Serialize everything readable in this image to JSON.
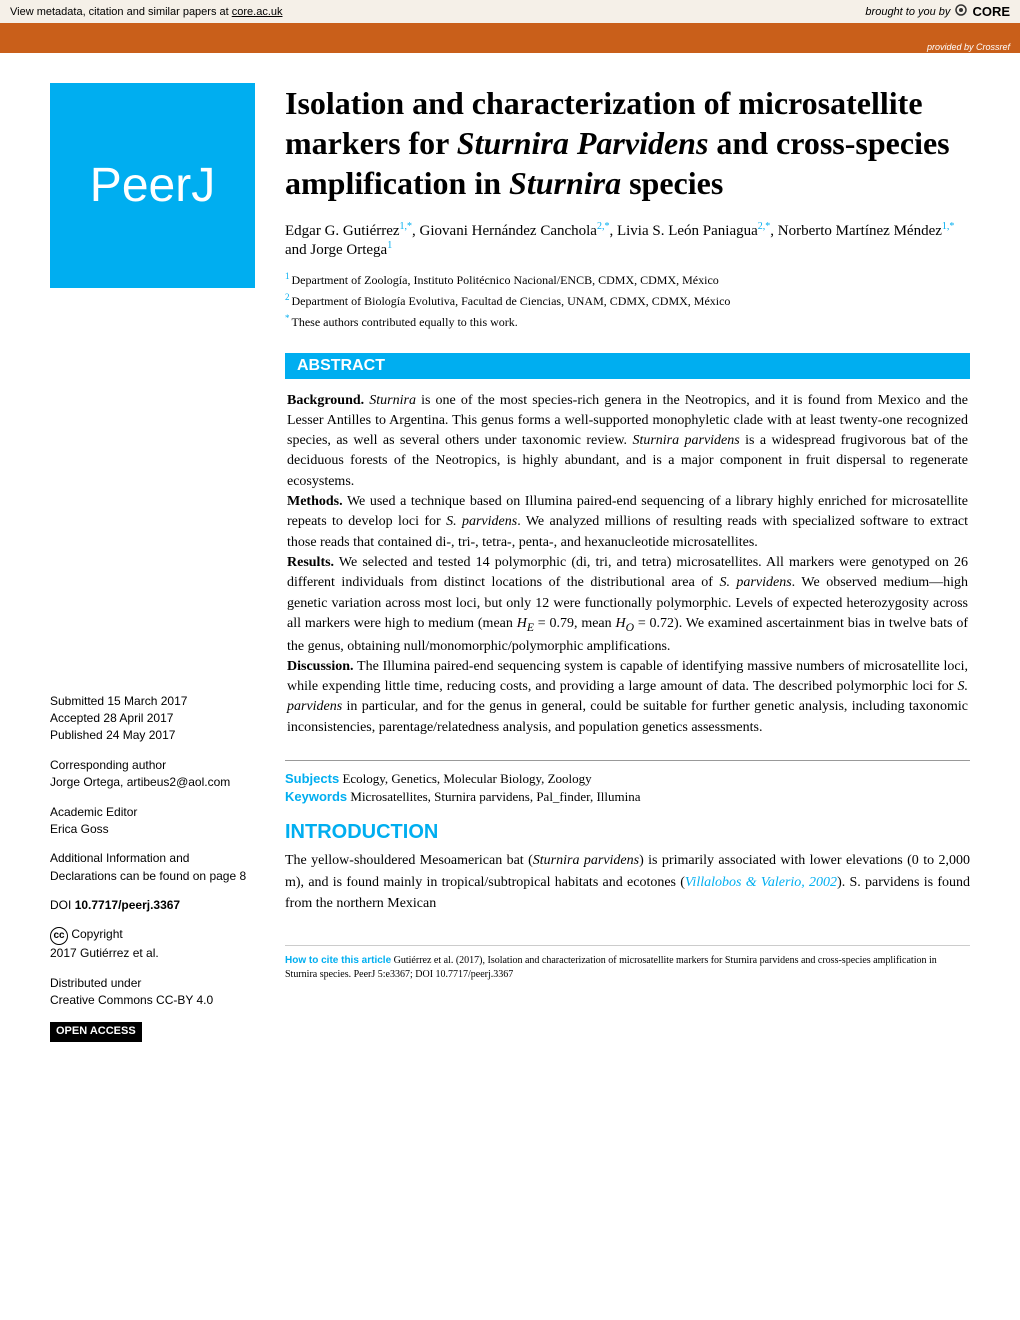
{
  "banner": {
    "left_text": "View metadata, citation and similar papers at ",
    "left_link": "core.ac.uk",
    "brought_by": "brought to you by",
    "core": "CORE",
    "provided_by": "provided by Crossref"
  },
  "logo": {
    "text": "PeerJ"
  },
  "title": {
    "parts": [
      {
        "t": "Isolation and characterization of microsatellite markers for ",
        "i": false
      },
      {
        "t": "Sturnira Parvidens",
        "i": true
      },
      {
        "t": " and cross-species amplification in ",
        "i": false
      },
      {
        "t": "Sturnira",
        "i": true
      },
      {
        "t": " species",
        "i": false
      }
    ]
  },
  "authors": [
    {
      "name": "Edgar G. Gutiérrez",
      "sup": "1,*"
    },
    {
      "name": "Giovani Hernández Canchola",
      "sup": "2,*"
    },
    {
      "name": "Livia S. León Paniagua",
      "sup": "2,*"
    },
    {
      "name": "Norberto Martínez Méndez",
      "sup": "1,*"
    },
    {
      "name": "Jorge Ortega",
      "sup": "1"
    }
  ],
  "affiliations": [
    {
      "sup": "1",
      "text": "Department of Zoología, Instituto Politécnico Nacional/ENCB, CDMX, CDMX, México"
    },
    {
      "sup": "2",
      "text": "Department of Biología Evolutiva, Facultad de Ciencias, UNAM, CDMX, CDMX, México"
    }
  ],
  "contrib": {
    "sup": "*",
    "text": "These authors contributed equally to this work."
  },
  "sidebar": {
    "submitted": {
      "label": "Submitted",
      "value": "15 March 2017"
    },
    "accepted": {
      "label": "Accepted",
      "value": "28 April 2017"
    },
    "published": {
      "label": "Published",
      "value": "24 May 2017"
    },
    "corresponding": {
      "label": "Corresponding author",
      "value": "Jorge Ortega, artibeus2@aol.com"
    },
    "editor": {
      "label": "Academic Editor",
      "value": "Erica Goss"
    },
    "additional": "Additional Information and Declarations can be found on page 8",
    "doi": {
      "label": "DOI",
      "value": "10.7717/peerj.3367"
    },
    "copyright": {
      "label": "Copyright",
      "value": "2017 Gutiérrez et al."
    },
    "distributed": {
      "label": "Distributed under",
      "value": "Creative Commons CC-BY 4.0"
    },
    "open_access": "OPEN ACCESS"
  },
  "abstract": {
    "header": "ABSTRACT",
    "sections": [
      {
        "label": "Background.",
        "text": " Sturnira is one of the most species-rich genera in the Neotropics, and it is found from Mexico and the Lesser Antilles to Argentina. This genus forms a well-supported monophyletic clade with at least twenty-one recognized species, as well as several others under taxonomic review. Sturnira parvidens is a widespread frugivorous bat of the deciduous forests of the Neotropics, is highly abundant, and is a major component in fruit dispersal to regenerate ecosystems."
      },
      {
        "label": "Methods.",
        "text": " We used a technique based on Illumina paired-end sequencing of a library highly enriched for microsatellite repeats to develop loci for S. parvidens. We analyzed millions of resulting reads with specialized software to extract those reads that contained di-, tri-, tetra-, penta-, and hexanucleotide microsatellites."
      },
      {
        "label": "Results.",
        "text": " We selected and tested 14 polymorphic (di, tri, and tetra) microsatellites. All markers were genotyped on 26 different individuals from distinct locations of the distributional area of S. parvidens. We observed medium—high genetic variation across most loci, but only 12 were functionally polymorphic. Levels of expected heterozygosity across all markers were high to medium (mean H_E = 0.79, mean H_O = 0.72). We examined ascertainment bias in twelve bats of the genus, obtaining null/monomorphic/polymorphic amplifications."
      },
      {
        "label": "Discussion.",
        "text": " The Illumina paired-end sequencing system is capable of identifying massive numbers of microsatellite loci, while expending little time, reducing costs, and providing a large amount of data. The described polymorphic loci for S. parvidens in particular, and for the genus in general, could be suitable for further genetic analysis, including taxonomic inconsistencies, parentage/relatedness analysis, and population genetics assessments."
      }
    ]
  },
  "subjects": {
    "label": "Subjects",
    "value": "Ecology, Genetics, Molecular Biology, Zoology"
  },
  "keywords": {
    "label": "Keywords",
    "value": "Microsatellites, Sturnira parvidens, Pal_finder, Illumina"
  },
  "intro": {
    "header": "INTRODUCTION",
    "body_pre": "The yellow-shouldered Mesoamerican bat (",
    "body_species": "Sturnira parvidens",
    "body_mid": ") is primarily associated with lower elevations (0 to 2,000 m), and is found mainly in tropical/subtropical habitats and ecotones (",
    "ref": "Villalobos & Valerio, 2002",
    "body_post": "). S. parvidens is found from the northern Mexican"
  },
  "citation": {
    "label": "How to cite this article",
    "text": " Gutiérrez et al. (2017), Isolation and characterization of microsatellite markers for Sturnira parvidens and cross-species amplification in Sturnira species. PeerJ 5:e3367; DOI 10.7717/peerj.3367"
  },
  "colors": {
    "accent": "#00aef0",
    "orange": "#c95f1a",
    "banner_bg": "#f5f0e8"
  }
}
